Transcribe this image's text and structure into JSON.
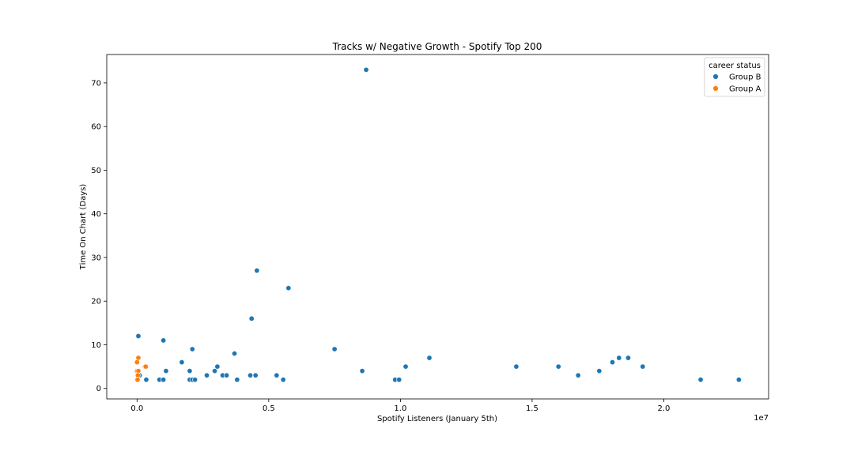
{
  "chart_data": {
    "type": "scatter",
    "title": "Tracks w/ Negative Growth - Spotify Top 200",
    "xlabel": "Spotify Listeners (January 5th)",
    "ylabel": "Time On Chart (Days)",
    "x_offset_label": "1e7",
    "x_tick_labels": [
      "0.0",
      "0.5",
      "1.0",
      "1.5",
      "2.0"
    ],
    "x_ticks": [
      0,
      5000000,
      10000000,
      15000000,
      20000000
    ],
    "y_ticks": [
      0,
      10,
      20,
      30,
      40,
      50,
      60,
      70
    ],
    "y_tick_labels": [
      "0",
      "10",
      "20",
      "30",
      "40",
      "50",
      "60",
      "70"
    ],
    "xlim": [
      -1150000,
      23980000
    ],
    "ylim": [
      -2.4,
      76.5
    ],
    "grid": false,
    "legend": {
      "title": "career status",
      "placement": "top-right"
    },
    "series": [
      {
        "name": "Group B",
        "color": "#1f77b4",
        "points": [
          [
            8700000,
            73
          ],
          [
            4550000,
            27
          ],
          [
            5750000,
            23
          ],
          [
            4350000,
            16
          ],
          [
            50000,
            12
          ],
          [
            1000000,
            11
          ],
          [
            2100000,
            9
          ],
          [
            7500000,
            9
          ],
          [
            3700000,
            8
          ],
          [
            11100000,
            7
          ],
          [
            18300000,
            7
          ],
          [
            18650000,
            7
          ],
          [
            1700000,
            6
          ],
          [
            18050000,
            6
          ],
          [
            3050000,
            5
          ],
          [
            10200000,
            5
          ],
          [
            14400000,
            5
          ],
          [
            16000000,
            5
          ],
          [
            19200000,
            5
          ],
          [
            1100000,
            4
          ],
          [
            2000000,
            4
          ],
          [
            2950000,
            4
          ],
          [
            8550000,
            4
          ],
          [
            17550000,
            4
          ],
          [
            2650000,
            3
          ],
          [
            3250000,
            3
          ],
          [
            3400000,
            3
          ],
          [
            4300000,
            3
          ],
          [
            4500000,
            3
          ],
          [
            5300000,
            3
          ],
          [
            16750000,
            3
          ],
          [
            350000,
            2
          ],
          [
            850000,
            2
          ],
          [
            1000000,
            2
          ],
          [
            2000000,
            2
          ],
          [
            2100000,
            2
          ],
          [
            2200000,
            2
          ],
          [
            3800000,
            2
          ],
          [
            5550000,
            2
          ],
          [
            9800000,
            2
          ],
          [
            9950000,
            2
          ],
          [
            21400000,
            2
          ],
          [
            22850000,
            2
          ],
          [
            100000,
            3
          ]
        ]
      },
      {
        "name": "Group A",
        "color": "#ff7f0e",
        "points": [
          [
            50000,
            7
          ],
          [
            0,
            6
          ],
          [
            300000,
            5
          ],
          [
            330000,
            5
          ],
          [
            0,
            4
          ],
          [
            50000,
            4
          ],
          [
            30000,
            3
          ],
          [
            0,
            2
          ],
          [
            20000,
            2
          ]
        ]
      }
    ]
  }
}
